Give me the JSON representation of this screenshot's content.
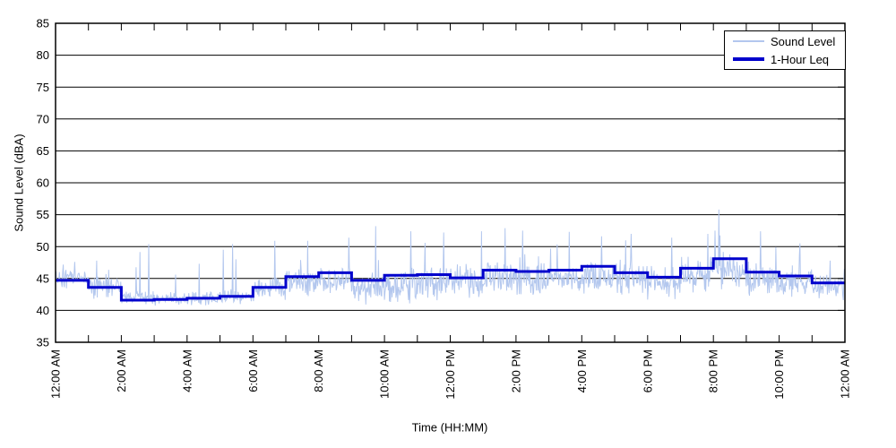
{
  "figure": {
    "background": "#ffffff",
    "axis_color": "#000000",
    "text_color": "#000000"
  },
  "chart_data": {
    "type": "line",
    "title": "",
    "xlabel": "Time (HH:MM)",
    "ylabel": "Sound Level (dBA)",
    "x_hours_range": [
      0,
      24
    ],
    "ylim": [
      35,
      85
    ],
    "y_ticks": [
      35,
      40,
      45,
      50,
      55,
      60,
      65,
      70,
      75,
      80,
      85
    ],
    "x_tick_hours": [
      0,
      2,
      4,
      6,
      8,
      10,
      12,
      14,
      16,
      18,
      20,
      22,
      24
    ],
    "x_tick_labels": [
      "12:00 AM",
      "2:00 AM",
      "4:00 AM",
      "6:00 AM",
      "8:00 AM",
      "10:00 AM",
      "12:00 PM",
      "2:00 PM",
      "4:00 PM",
      "6:00 PM",
      "8:00 PM",
      "10:00 PM",
      "12:00 AM"
    ],
    "minor_tick_every_hours": 1,
    "grid": "horizontal-solid-black",
    "legend": {
      "position": "top-right"
    },
    "series": [
      {
        "name": "Sound Level",
        "color": "#b3c7ee",
        "line_width": 1,
        "kind": "minute-trace",
        "generation": {
          "seed": 20170913,
          "points_per_hour": 60,
          "spike_probability": 0.012,
          "value_floor_dBA": 40.2,
          "hourly_envelope_dBA": [
            [
              42.9,
              46.9,
              47.6
            ],
            [
              41.3,
              46.0,
              47.8
            ],
            [
              40.5,
              43.6,
              50.4
            ],
            [
              40.4,
              43.2,
              45.6
            ],
            [
              40.4,
              43.4,
              47.3
            ],
            [
              40.6,
              43.8,
              50.4
            ],
            [
              41.0,
              45.8,
              50.9
            ],
            [
              41.8,
              47.4,
              50.9
            ],
            [
              41.8,
              47.8,
              51.4
            ],
            [
              40.3,
              47.3,
              53.2
            ],
            [
              40.4,
              47.5,
              52.4
            ],
            [
              41.0,
              47.8,
              52.2
            ],
            [
              41.0,
              47.9,
              52.4
            ],
            [
              41.4,
              48.2,
              52.9
            ],
            [
              41.4,
              48.3,
              52.5
            ],
            [
              41.5,
              48.4,
              52.3
            ],
            [
              41.5,
              48.8,
              51.6
            ],
            [
              41.4,
              48.6,
              52.0
            ],
            [
              41.0,
              47.9,
              51.4
            ],
            [
              42.0,
              49.2,
              52.0
            ],
            [
              42.4,
              50.2,
              52.5
            ],
            [
              41.3,
              48.6,
              52.4
            ],
            [
              41.2,
              47.5,
              50.5
            ],
            [
              41.0,
              46.2,
              47.8
            ]
          ],
          "max_event": {
            "hour_of_day": 20.17,
            "value_dBA": 55.8
          }
        }
      },
      {
        "name": "1-Hour Leq",
        "color": "#0000cc",
        "line_width": 3,
        "kind": "hourly-step",
        "hourly_leq_dBA": [
          44.7,
          43.6,
          41.6,
          41.7,
          41.9,
          42.2,
          43.6,
          45.3,
          45.9,
          44.7,
          45.5,
          45.6,
          45.1,
          46.3,
          46.1,
          46.3,
          46.9,
          45.9,
          45.2,
          46.6,
          48.1,
          46.0,
          45.4,
          44.3
        ]
      }
    ]
  }
}
